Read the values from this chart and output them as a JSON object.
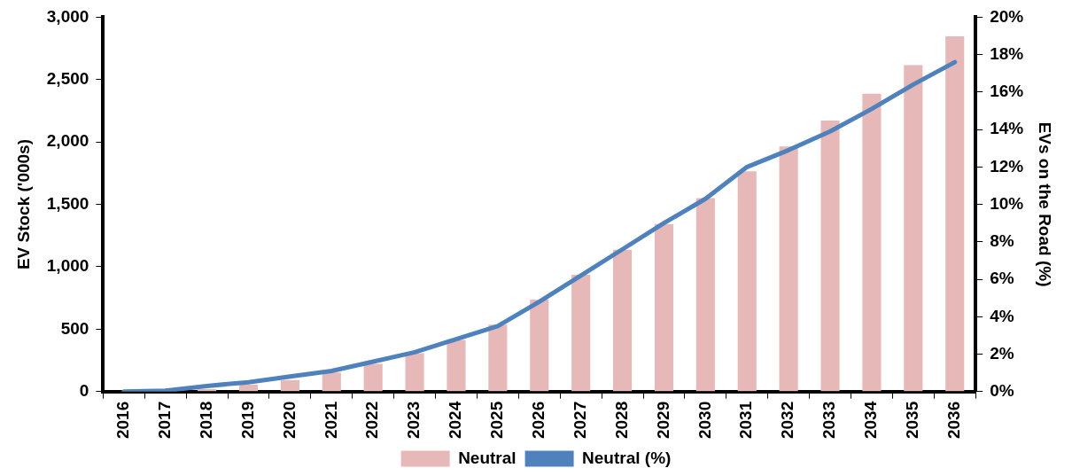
{
  "chart_data": {
    "type": "bar",
    "categories": [
      "2016",
      "2017",
      "2018",
      "2019",
      "2020",
      "2021",
      "2022",
      "2023",
      "2024",
      "2025",
      "2026",
      "2027",
      "2028",
      "2029",
      "2030",
      "2031",
      "2032",
      "2033",
      "2034",
      "2035",
      "2036"
    ],
    "series": [
      {
        "name": "Neutral",
        "color": "#e6b8b7",
        "values": [
          null,
          null,
          20,
          55,
          92,
          153,
          222,
          307,
          414,
          537,
          736,
          936,
          1136,
          1343,
          1550,
          1765,
          1964,
          2172,
          2386,
          2616,
          2847
        ]
      },
      {
        "name": "Neutral (%)",
        "type": "line",
        "axis": "y2",
        "color": "#4f81bd",
        "values": [
          0,
          0.05,
          0.3,
          0.5,
          0.8,
          1.1,
          1.6,
          2.1,
          2.8,
          3.5,
          4.8,
          6.2,
          7.6,
          9.0,
          10.3,
          12.0,
          12.9,
          13.9,
          15.1,
          16.4,
          17.6
        ]
      }
    ],
    "ylabel": "EV Stock ('000s)",
    "y2label": "EVs on the Road (%)",
    "ylim": [
      0,
      3000
    ],
    "yticks": [
      {
        "value": 0,
        "label": "0"
      },
      {
        "value": 500,
        "label": "500"
      },
      {
        "value": 1000,
        "label": "1,000"
      },
      {
        "value": 1500,
        "label": "1,500"
      },
      {
        "value": 2000,
        "label": "2,000"
      },
      {
        "value": 2500,
        "label": "2,500"
      },
      {
        "value": 3000,
        "label": "3,000"
      }
    ],
    "y2lim": [
      0,
      20
    ],
    "y2ticks": [
      {
        "value": 0,
        "label": "0%"
      },
      {
        "value": 2,
        "label": "2%"
      },
      {
        "value": 4,
        "label": "4%"
      },
      {
        "value": 6,
        "label": "6%"
      },
      {
        "value": 8,
        "label": "8%"
      },
      {
        "value": 10,
        "label": "10%"
      },
      {
        "value": 12,
        "label": "12%"
      },
      {
        "value": 14,
        "label": "14%"
      },
      {
        "value": 16,
        "label": "16%"
      },
      {
        "value": 18,
        "label": "18%"
      },
      {
        "value": 20,
        "label": "20%"
      }
    ],
    "grid": false,
    "legend": "bottom",
    "marker": "none",
    "line_style": "solid"
  }
}
